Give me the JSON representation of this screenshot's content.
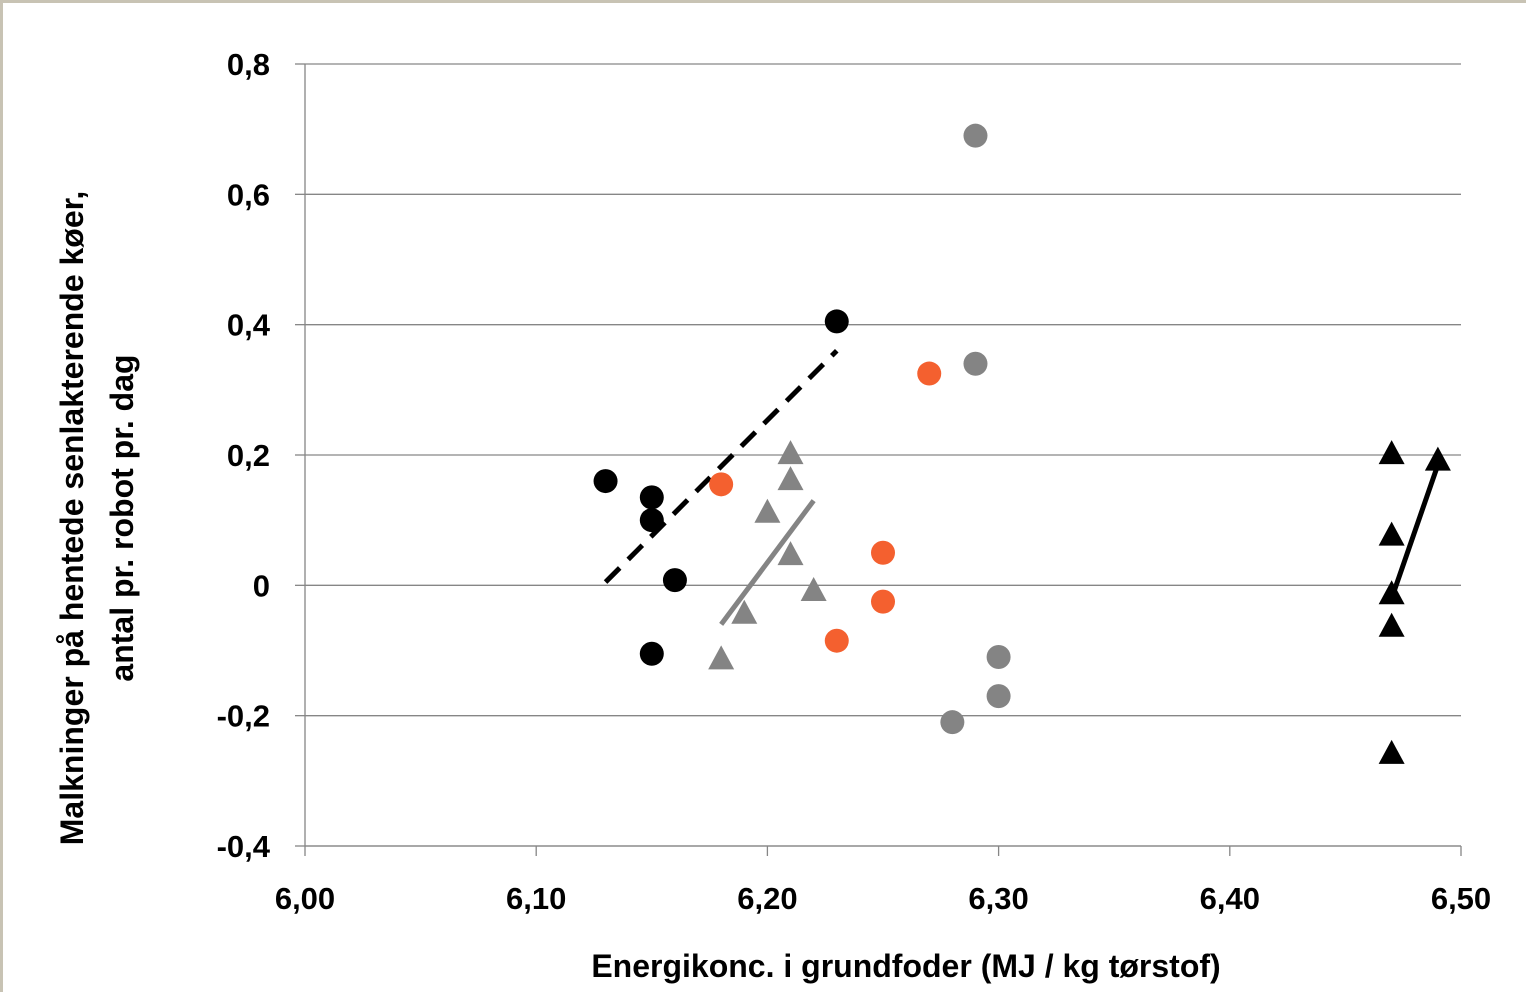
{
  "chart_data": {
    "type": "scatter",
    "title": "",
    "xlabel": "Energikonc. i grundfoder (MJ / kg tørstof)",
    "ylabel": [
      "Malkninger på hentede senlakterende køer,",
      "antal pr. robot pr. dag"
    ],
    "xlim": [
      6.0,
      6.5
    ],
    "ylim": [
      -0.4,
      0.8
    ],
    "x_ticks": [
      6.0,
      6.1,
      6.2,
      6.3,
      6.4,
      6.5
    ],
    "x_tick_labels": [
      "6,00",
      "6,10",
      "6,20",
      "6,30",
      "6,40",
      "6,50"
    ],
    "y_ticks": [
      -0.4,
      -0.2,
      0,
      0.2,
      0.4,
      0.6,
      0.8
    ],
    "y_tick_labels": [
      "-0,4",
      "-0,2",
      "0",
      "0,2",
      "0,4",
      "0,6",
      "0,8"
    ],
    "grid": "horizontal",
    "legend": "none",
    "series": [
      {
        "marker": "circle",
        "color": "#000000",
        "points": [
          [
            6.13,
            0.16
          ],
          [
            6.15,
            0.135
          ],
          [
            6.15,
            0.1
          ],
          [
            6.16,
            0.008
          ],
          [
            6.15,
            -0.105
          ],
          [
            6.23,
            0.405
          ]
        ],
        "trendline": {
          "style": "dashed",
          "color": "#000000",
          "from": [
            6.13,
            0.005
          ],
          "to": [
            6.23,
            0.36
          ]
        }
      },
      {
        "marker": "circle",
        "color": "#f4602f",
        "points": [
          [
            6.18,
            0.155
          ],
          [
            6.27,
            0.325
          ],
          [
            6.25,
            0.05
          ],
          [
            6.25,
            -0.025
          ],
          [
            6.23,
            -0.085
          ]
        ]
      },
      {
        "marker": "circle",
        "color": "#848484",
        "points": [
          [
            6.29,
            0.69
          ],
          [
            6.29,
            0.34
          ],
          [
            6.3,
            -0.11
          ],
          [
            6.3,
            -0.17
          ],
          [
            6.28,
            -0.21
          ]
        ]
      },
      {
        "marker": "triangle",
        "color": "#848484",
        "points": [
          [
            6.21,
            0.2
          ],
          [
            6.21,
            0.16
          ],
          [
            6.2,
            0.11
          ],
          [
            6.21,
            0.045
          ],
          [
            6.22,
            -0.01
          ],
          [
            6.19,
            -0.045
          ],
          [
            6.18,
            -0.115
          ]
        ],
        "trendline": {
          "style": "solid",
          "color": "#848484",
          "from": [
            6.18,
            -0.06
          ],
          "to": [
            6.22,
            0.13
          ]
        }
      },
      {
        "marker": "triangle",
        "color": "#000000",
        "points": [
          [
            6.47,
            0.2
          ],
          [
            6.49,
            0.19
          ],
          [
            6.47,
            0.075
          ],
          [
            6.47,
            -0.015
          ],
          [
            6.47,
            -0.065
          ],
          [
            6.47,
            -0.26
          ]
        ],
        "trendline": {
          "style": "solid",
          "color": "#000000",
          "from": [
            6.47,
            -0.02
          ],
          "to": [
            6.49,
            0.185
          ]
        }
      }
    ]
  }
}
